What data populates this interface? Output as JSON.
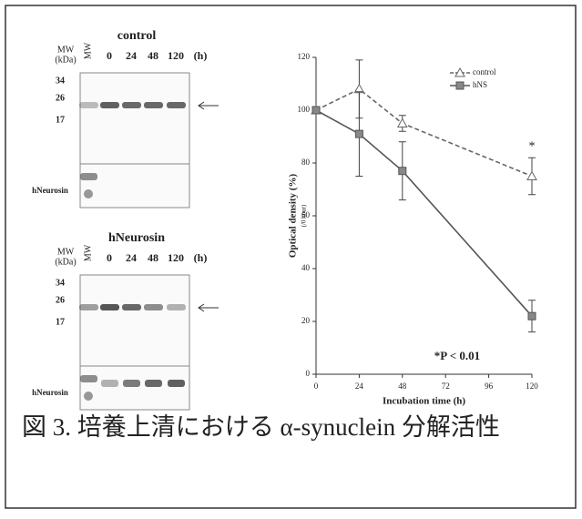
{
  "chart_data": {
    "type": "line",
    "y_label": "Optical density (%)",
    "y_sublabel": "(/0 hour)",
    "x_label": "Incubation time (h)",
    "x": [
      0,
      24,
      48,
      120
    ],
    "series": [
      {
        "name": "control",
        "color": "#666666",
        "dash": true,
        "marker": "triangle",
        "values": [
          100,
          108,
          95,
          75
        ],
        "errors": [
          0,
          11,
          3,
          7
        ]
      },
      {
        "name": "hNS",
        "color": "#555555",
        "dash": false,
        "marker": "square",
        "values": [
          100,
          91,
          77,
          22
        ],
        "errors": [
          0,
          16,
          11,
          6
        ]
      }
    ],
    "xlim": [
      0,
      120
    ],
    "xticks": [
      0,
      24,
      48,
      72,
      96,
      120
    ],
    "ylim": [
      0,
      120
    ],
    "yticks": [
      0,
      20,
      40,
      60,
      80,
      100,
      120
    ],
    "legend": "upper right",
    "annotations": [
      "*P < 0.01",
      "*"
    ]
  },
  "blots": [
    {
      "title": "control",
      "mw": [
        "MW",
        "(kDa)"
      ],
      "lanes": [
        "MW",
        0,
        24,
        48,
        120,
        "(h)"
      ],
      "markers": [
        34,
        26,
        17
      ],
      "probe": "hNeurosin"
    },
    {
      "title": "hNeurosin",
      "mw": [
        "MW",
        "(kDa)"
      ],
      "lanes": [
        "MW",
        0,
        24,
        48,
        120,
        "(h)"
      ],
      "markers": [
        34,
        26,
        17
      ],
      "probe": "hNeurosin"
    }
  ],
  "caption": "図 3. 培養上清における α-synuclein 分解活性"
}
